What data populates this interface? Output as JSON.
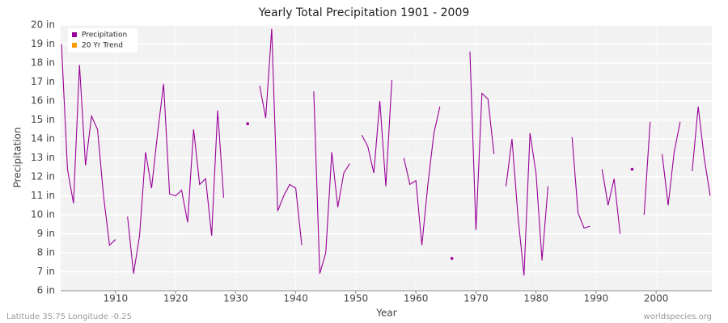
{
  "chart_data": {
    "type": "line",
    "title": "Yearly Total Precipitation 1901 - 2009",
    "xlabel": "Year",
    "ylabel": "Precipitation",
    "footer_left": "Latitude 35.75 Longitude -0.25",
    "footer_right": "worldspecies.org",
    "legend": "upper left",
    "grid": true,
    "x": [
      1901,
      1902,
      1903,
      1904,
      1905,
      1906,
      1907,
      1908,
      1909,
      1910,
      1911,
      1912,
      1913,
      1914,
      1915,
      1916,
      1917,
      1918,
      1919,
      1920,
      1921,
      1922,
      1923,
      1924,
      1925,
      1926,
      1927,
      1928,
      1929,
      1930,
      1931,
      1932,
      1933,
      1934,
      1935,
      1936,
      1937,
      1938,
      1939,
      1940,
      1941,
      1942,
      1943,
      1944,
      1945,
      1946,
      1947,
      1948,
      1949,
      1950,
      1951,
      1952,
      1953,
      1954,
      1955,
      1956,
      1957,
      1958,
      1959,
      1960,
      1961,
      1962,
      1963,
      1964,
      1965,
      1966,
      1967,
      1968,
      1969,
      1970,
      1971,
      1972,
      1973,
      1974,
      1975,
      1976,
      1977,
      1978,
      1979,
      1980,
      1981,
      1982,
      1983,
      1984,
      1985,
      1986,
      1987,
      1988,
      1989,
      1990,
      1991,
      1992,
      1993,
      1994,
      1995,
      1996,
      1997,
      1998,
      1999,
      2000,
      2001,
      2002,
      2003,
      2004,
      2005,
      2006,
      2007,
      2008,
      2009
    ],
    "series": [
      {
        "name": "Precipitation",
        "color": "#990099",
        "values": [
          19.0,
          12.4,
          10.6,
          17.9,
          12.6,
          15.2,
          14.5,
          11.0,
          8.4,
          8.7,
          null,
          9.9,
          6.9,
          8.9,
          13.3,
          11.4,
          14.3,
          16.9,
          11.1,
          11.0,
          11.3,
          9.6,
          14.5,
          11.6,
          11.9,
          8.9,
          15.5,
          10.9,
          null,
          null,
          null,
          14.8,
          null,
          16.8,
          15.1,
          19.8,
          10.2,
          11.0,
          11.6,
          11.4,
          8.4,
          null,
          16.5,
          6.9,
          8.0,
          13.3,
          10.4,
          12.2,
          12.7,
          null,
          14.2,
          13.6,
          12.2,
          16.0,
          11.5,
          17.1,
          null,
          13.0,
          11.6,
          11.8,
          8.4,
          11.6,
          14.3,
          15.7,
          null,
          7.7,
          null,
          null,
          18.6,
          9.2,
          16.4,
          16.1,
          13.2,
          null,
          11.5,
          14.0,
          9.9,
          6.8,
          14.3,
          12.2,
          7.6,
          11.5,
          null,
          null,
          null,
          14.1,
          10.1,
          9.3,
          9.4,
          null,
          12.4,
          10.5,
          11.9,
          9.0,
          null,
          12.4,
          null,
          10.0,
          14.9,
          null,
          13.2,
          10.5,
          13.3,
          14.9,
          null,
          12.3,
          15.7,
          13.0,
          11.0
        ]
      },
      {
        "name": "20 Yr Trend",
        "color": "#ff9900",
        "values": [
          null,
          null,
          null,
          null,
          null,
          null,
          null,
          null,
          null,
          null,
          null,
          null,
          null,
          null,
          null,
          null,
          null,
          null,
          null,
          null,
          null,
          null,
          null,
          null,
          null,
          null,
          null,
          null,
          null,
          null,
          null,
          null,
          null,
          null,
          null,
          null,
          null,
          null,
          null,
          null,
          null,
          null,
          null,
          null,
          null,
          null,
          null,
          null,
          null,
          null,
          null,
          null,
          null,
          null,
          null,
          null,
          null,
          null,
          null,
          null,
          null,
          null,
          null,
          null,
          null,
          null,
          null,
          null,
          null,
          null,
          null,
          null,
          null,
          null,
          null,
          null,
          null,
          null,
          null,
          null,
          null,
          null,
          null,
          null,
          null,
          null,
          null,
          null,
          null,
          null,
          null,
          null,
          null,
          null,
          null,
          null,
          null,
          null,
          null,
          null,
          null,
          null,
          null,
          null,
          null,
          null,
          null,
          null,
          null
        ]
      }
    ],
    "xlim": [
      1901,
      2009
    ],
    "xticks": [
      1910,
      1920,
      1930,
      1940,
      1950,
      1960,
      1970,
      1980,
      1990,
      2000
    ],
    "ylim": [
      6,
      20
    ],
    "yticks": [
      {
        "value": 6,
        "label": "6 in"
      },
      {
        "value": 7,
        "label": "7 in"
      },
      {
        "value": 8,
        "label": "8 in"
      },
      {
        "value": 9,
        "label": "9 in"
      },
      {
        "value": 10,
        "label": "10 in"
      },
      {
        "value": 11,
        "label": "11 in"
      },
      {
        "value": 12,
        "label": "12 in"
      },
      {
        "value": 13,
        "label": "13 in"
      },
      {
        "value": 14,
        "label": "14 in"
      },
      {
        "value": 15,
        "label": "15 in"
      },
      {
        "value": 16,
        "label": "16 in"
      },
      {
        "value": 17,
        "label": "17 in"
      },
      {
        "value": 18,
        "label": "18 in"
      },
      {
        "value": 19,
        "label": "19 in"
      },
      {
        "value": 20,
        "label": "20 in"
      }
    ]
  }
}
